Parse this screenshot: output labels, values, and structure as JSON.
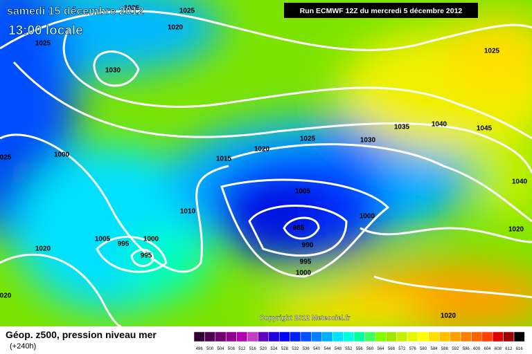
{
  "header": {
    "date": "samedi 15 décembre 2012",
    "time": "13:00 locale",
    "run": "Run ECMWF 12Z du mercredi 5 décembre 2012"
  },
  "isobar_labels": [
    "1025",
    "1025",
    "1020",
    "1025",
    "1030",
    "1025",
    "1035",
    "1040",
    "1045",
    "1020",
    "1025",
    "1030",
    "1000",
    "025",
    "1015",
    "1040",
    "1005",
    "1010",
    "1000",
    "985",
    "1020",
    "1005",
    "995",
    "1000",
    "990",
    "1020",
    "995",
    "995",
    "1000",
    "020",
    "1020"
  ],
  "footer": {
    "title": "Géop. z500, pression niveau mer",
    "lead": "(+240h)",
    "copyright": "Copyright 2012 Meteociel.fr"
  },
  "legend": {
    "labels": [
      496,
      500,
      504,
      508,
      512,
      516,
      520,
      524,
      528,
      532,
      536,
      540,
      544,
      548,
      552,
      556,
      560,
      564,
      568,
      572,
      576,
      580,
      584,
      588,
      592,
      596,
      600,
      604,
      608,
      612,
      616
    ],
    "colors": [
      "#300030",
      "#500050",
      "#700070",
      "#900090",
      "#b000b0",
      "#c040c0",
      "#6000c0",
      "#2000e0",
      "#0000ff",
      "#0020ff",
      "#0050ff",
      "#0080ff",
      "#00b0ff",
      "#00e0ff",
      "#00ffe0",
      "#00ffa0",
      "#40ff60",
      "#80ff00",
      "#a0e800",
      "#c8f000",
      "#e8f800",
      "#ffff00",
      "#ffe000",
      "#ffc000",
      "#ffa000",
      "#ff8000",
      "#ff6000",
      "#ff4000",
      "#e00000",
      "#a00000",
      "#000000"
    ]
  }
}
